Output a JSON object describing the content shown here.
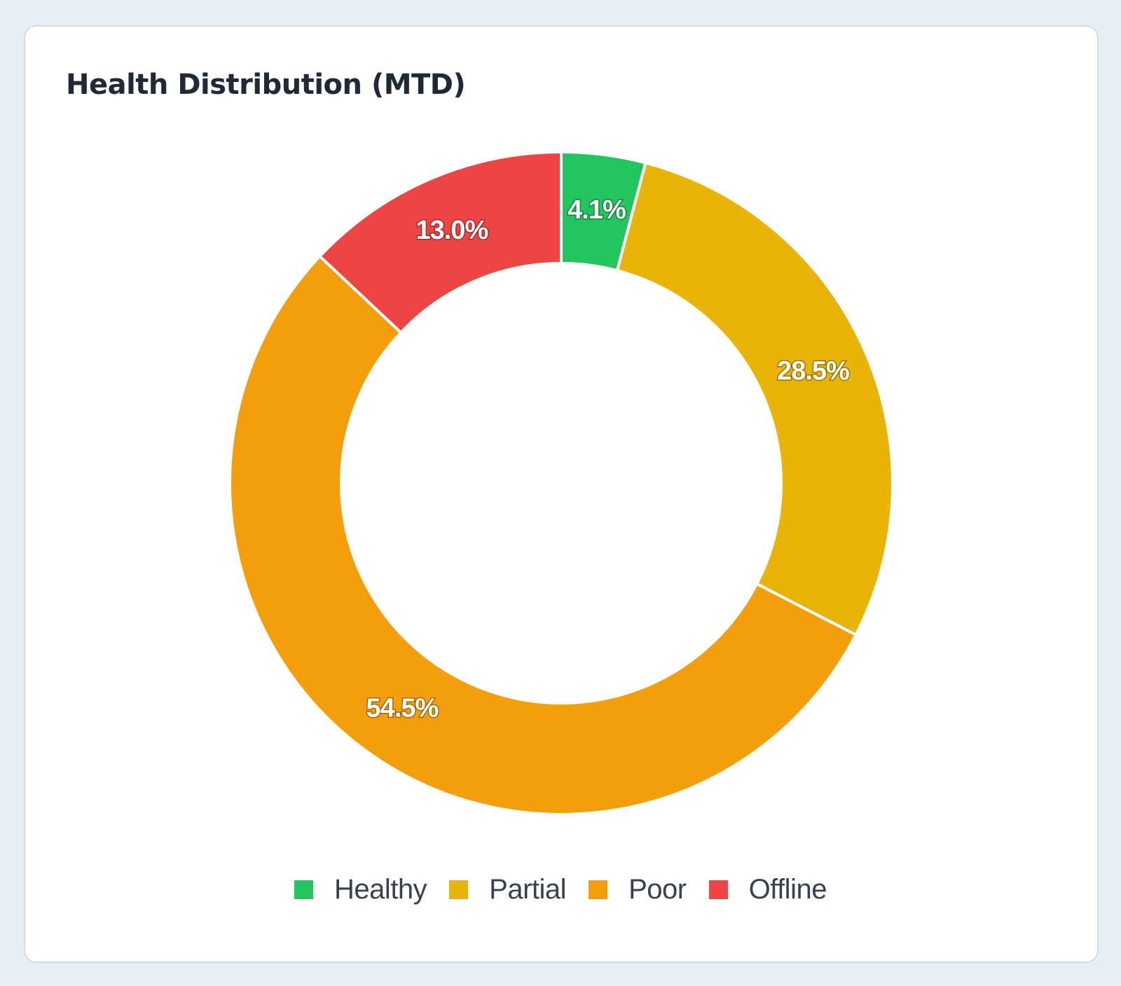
{
  "card": {
    "title": "Health Distribution (MTD)"
  },
  "chart_data": {
    "type": "pie",
    "variant": "doughnut",
    "title": "Health Distribution (MTD)",
    "categories": [
      "Healthy",
      "Partial",
      "Poor",
      "Offline"
    ],
    "values": [
      4.1,
      28.5,
      54.5,
      13.0
    ],
    "labels": [
      "4.1%",
      "28.5%",
      "54.5%",
      "13.0%"
    ],
    "colors": [
      "#22c55e",
      "#eab308",
      "#f59e0b",
      "#ef4444"
    ],
    "legend_position": "bottom"
  }
}
